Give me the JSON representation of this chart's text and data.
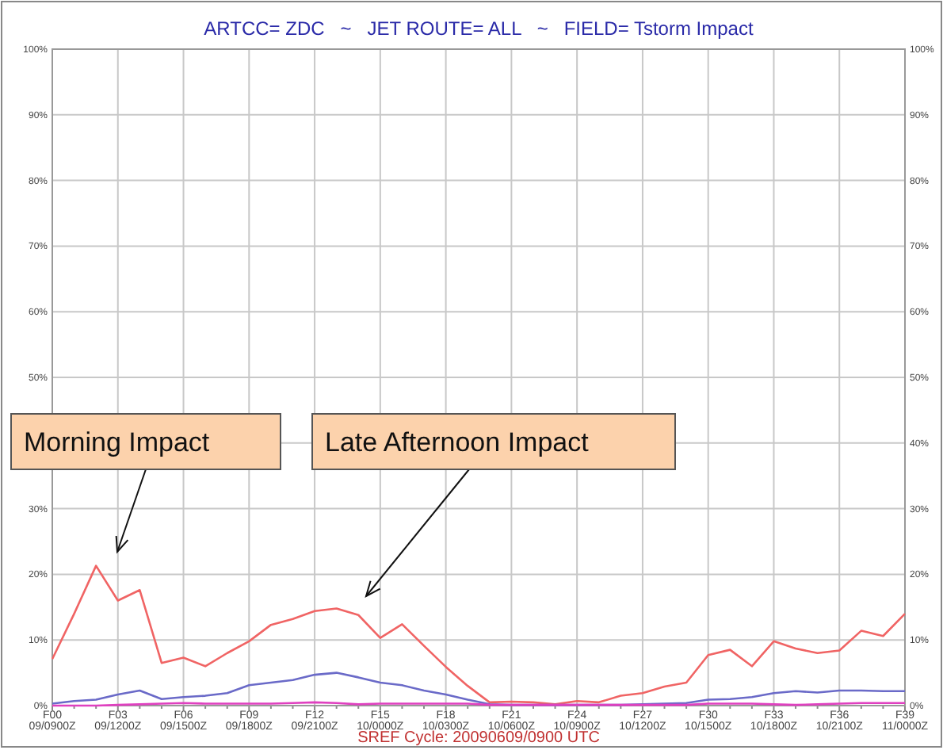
{
  "chart_data": {
    "type": "line",
    "title": "ARTCC= ZDC   ~   JET ROUTE= ALL   ~   FIELD= Tstorm Impact",
    "categories": [
      "F00\n09/0900Z",
      null,
      null,
      "F03\n09/1200Z",
      null,
      null,
      "F06\n09/1500Z",
      null,
      null,
      "F09\n09/1800Z",
      null,
      null,
      "F12\n09/2100Z",
      null,
      null,
      "F15\n10/0000Z",
      null,
      null,
      "F18\n10/0300Z",
      null,
      null,
      "F21\n10/0600Z",
      null,
      null,
      "F24\n10/0900Z",
      null,
      null,
      "F27\n10/1200Z",
      null,
      null,
      "F30\n10/1500Z",
      null,
      null,
      "F33\n10/1800Z",
      null,
      null,
      "F36\n10/2100Z",
      null,
      null,
      "F39\n11/0000Z"
    ],
    "series": [
      {
        "color": "#f06464",
        "values": [
          7.1,
          14,
          21.3,
          16,
          17.6,
          6.5,
          7.3,
          6,
          8,
          9.8,
          12.3,
          13.2,
          14.4,
          14.8,
          13.8,
          10.3,
          12.4,
          9.1,
          5.9,
          3,
          0.5,
          0.6,
          0.5,
          0.2,
          0.7,
          0.5,
          1.5,
          1.9,
          2.9,
          3.5,
          7.7,
          8.5,
          6,
          9.8,
          8.7,
          8,
          8.4,
          11.4,
          10.6,
          14
        ]
      },
      {
        "color": "#6a6ac8",
        "values": [
          0.3,
          0.7,
          0.9,
          1.7,
          2.3,
          1,
          1.3,
          1.5,
          1.9,
          3.1,
          3.5,
          3.9,
          4.7,
          5,
          4.3,
          3.5,
          3.1,
          2.3,
          1.7,
          0.9,
          0.2,
          0.1,
          0.1,
          0.1,
          0.1,
          0.1,
          0.1,
          0.2,
          0.3,
          0.4,
          0.9,
          1,
          1.3,
          1.9,
          2.2,
          2,
          2.3,
          2.3,
          2.2,
          2.2
        ]
      },
      {
        "color": "#e040c0",
        "values": [
          0,
          0,
          0,
          0.1,
          0.2,
          0.3,
          0.4,
          0.3,
          0.3,
          0.3,
          0.3,
          0.4,
          0.5,
          0.4,
          0.2,
          0.3,
          0.3,
          0.3,
          0.3,
          0.3,
          0.1,
          0.1,
          0.1,
          0.1,
          0.1,
          0.1,
          0.1,
          0.1,
          0.1,
          0.1,
          0.3,
          0.3,
          0.3,
          0.2,
          0.1,
          0.2,
          0.3,
          0.4,
          0.4,
          0.4
        ]
      }
    ],
    "ylim": [
      0,
      100
    ],
    "yticks": [
      {
        "value": 0,
        "label": "0%"
      },
      {
        "value": 10,
        "label": "10%"
      },
      {
        "value": 20,
        "label": "20%"
      },
      {
        "value": 30,
        "label": "30%"
      },
      {
        "value": 40,
        "label": null
      },
      {
        "value": 50,
        "label": "50%"
      },
      {
        "value": 60,
        "label": "60%"
      },
      {
        "value": 70,
        "label": "70%"
      },
      {
        "value": 80,
        "label": "80%"
      },
      {
        "value": 90,
        "label": "90%"
      },
      {
        "value": 100,
        "label": "100%"
      }
    ],
    "y2lim": [
      0,
      100
    ],
    "y2ticks": [
      {
        "value": 0,
        "label": "0%"
      },
      {
        "value": 10,
        "label": "10%"
      },
      {
        "value": 20,
        "label": "20%"
      },
      {
        "value": 30,
        "label": "30%"
      },
      {
        "value": 40,
        "label": "40%"
      },
      {
        "value": 50,
        "label": "50%"
      },
      {
        "value": 60,
        "label": "60%"
      },
      {
        "value": 70,
        "label": "70%"
      },
      {
        "value": 80,
        "label": "80%"
      },
      {
        "value": 90,
        "label": "90%"
      },
      {
        "value": 100,
        "label": "100%"
      }
    ],
    "grid": true,
    "annotations": [
      "Morning Impact",
      "Late Afternoon Impact",
      "SREF Cycle: 20090609/0900 UTC"
    ]
  }
}
